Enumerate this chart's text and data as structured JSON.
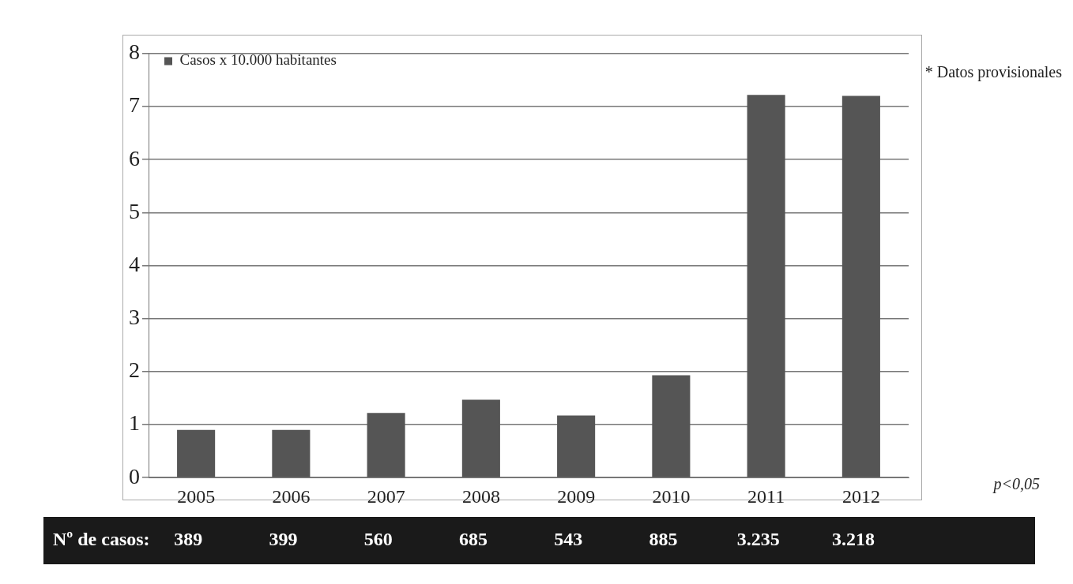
{
  "chart_data": {
    "type": "bar",
    "categories": [
      "2005",
      "2006",
      "2007",
      "2008",
      "2009",
      "2010",
      "2011",
      "2012"
    ],
    "series": [
      {
        "name": "Casos x 10.000 habitantes",
        "color": "#555555",
        "values": [
          0.9,
          0.9,
          1.22,
          1.47,
          1.17,
          1.93,
          7.22,
          7.2
        ]
      }
    ],
    "ylim": [
      0,
      8
    ],
    "yticks": [
      0,
      1,
      2,
      3,
      4,
      5,
      6,
      7,
      8
    ],
    "grid": "y",
    "legend": "top left",
    "annotations": [
      "* Datos provisionales",
      "p<0,05",
      "Nº de casos:",
      "389",
      "399",
      "560",
      "685",
      "543",
      "885",
      "3.235",
      "3.218"
    ]
  }
}
